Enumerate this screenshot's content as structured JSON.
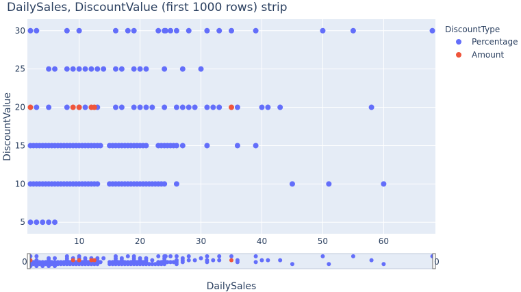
{
  "chart_data": {
    "type": "scatter",
    "title": "DailySales, DiscountValue (first 1000 rows) strip",
    "xlabel": "DailySales",
    "ylabel": "DiscountValue",
    "xlim": [
      1.5,
      68.5
    ],
    "ylim": [
      3.5,
      31.5
    ],
    "xticks": [
      10,
      20,
      30,
      40,
      50,
      60
    ],
    "yticks": [
      5,
      10,
      15,
      20,
      25,
      30
    ],
    "rangeslider_labels": [
      "0",
      "0"
    ],
    "legend": {
      "title": "DiscountType",
      "position": "top-right"
    },
    "series": [
      {
        "name": "Percentage",
        "color": "#636efa",
        "points": [
          {
            "y": 30,
            "x": [
              2,
              3,
              8,
              10,
              16,
              18,
              19,
              23,
              24,
              24.2,
              25,
              26,
              28,
              31,
              33,
              35,
              39,
              50,
              55,
              68
            ]
          },
          {
            "y": 25,
            "x": [
              5,
              6,
              8,
              9,
              10,
              11,
              12,
              13,
              14,
              16,
              17,
              19,
              20,
              21,
              24,
              27,
              30
            ]
          },
          {
            "y": 20,
            "x": [
              3,
              5,
              8,
              10,
              11,
              13,
              16,
              17,
              19,
              20,
              21,
              22,
              24,
              26,
              27,
              28,
              29,
              31,
              32,
              33,
              36,
              40,
              41,
              43,
              58
            ]
          },
          {
            "y": 15,
            "x": [
              2,
              2.5,
              3,
              3.5,
              4,
              4.5,
              5,
              5.5,
              6,
              6.5,
              7,
              7.5,
              8,
              8.5,
              9,
              9.5,
              10,
              10.5,
              11,
              11.5,
              12,
              12.5,
              13,
              13.5,
              15,
              15.5,
              16,
              16.5,
              17,
              17.5,
              18,
              18.5,
              19,
              19.5,
              20,
              20.5,
              21,
              23,
              23.5,
              24,
              24.5,
              25,
              25.5,
              26,
              27,
              31,
              36,
              39
            ]
          },
          {
            "y": 10,
            "x": [
              2,
              2.5,
              3,
              3.5,
              4,
              4.5,
              5,
              5.5,
              6,
              6.5,
              7,
              7.5,
              8,
              8.5,
              9,
              9.5,
              10,
              10.5,
              11,
              11.5,
              12,
              12.5,
              13,
              15,
              15.5,
              16,
              16.5,
              17,
              17.5,
              18,
              18.5,
              19,
              19.5,
              20,
              20.5,
              21,
              21.5,
              22,
              22.5,
              23,
              23.5,
              24,
              26,
              45,
              51,
              60
            ]
          },
          {
            "y": 5,
            "x": [
              2,
              3,
              4,
              5,
              6
            ]
          }
        ]
      },
      {
        "name": "Amount",
        "color": "#ef553b",
        "points": [
          {
            "y": 20,
            "x": [
              2,
              9,
              10,
              12,
              12.5,
              35
            ]
          }
        ]
      }
    ]
  }
}
